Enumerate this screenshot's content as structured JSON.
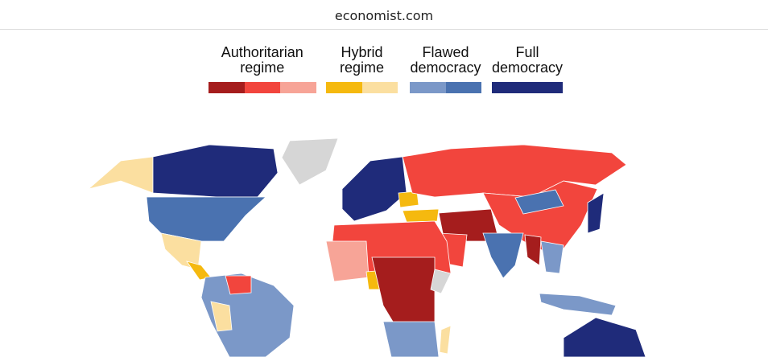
{
  "header": {
    "url": "economist.com"
  },
  "legend": [
    {
      "label": "Authoritarian regime",
      "colors": [
        "#a51d1d",
        "#f2453d",
        "#f7a497"
      ]
    },
    {
      "label": "Hybrid regime",
      "colors": [
        "#f5b90f",
        "#fbdfa0"
      ]
    },
    {
      "label": "Flawed democracy",
      "colors": [
        "#7b98c8",
        "#4a72b0"
      ]
    },
    {
      "label": "Full democracy",
      "colors": [
        "#1f2b7a"
      ]
    }
  ]
}
